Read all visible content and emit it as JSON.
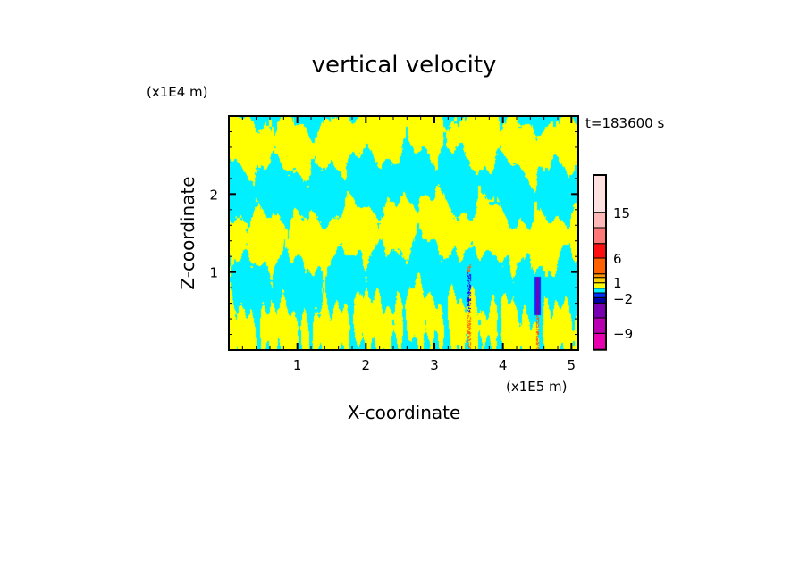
{
  "chart_data": {
    "type": "heatmap",
    "title": "vertical velocity",
    "xlabel": "X-coordinate",
    "ylabel": "Z-coordinate",
    "x_unit": "(x1E5 m)",
    "z_unit": "(x1E4 m)",
    "time_label": "t=183600 s",
    "xlim": [
      0,
      5.1
    ],
    "ylim": [
      0,
      3.0
    ],
    "x_ticks": [
      "1",
      "2",
      "3",
      "4",
      "5"
    ],
    "x_tick_values": [
      1,
      2,
      3,
      4,
      5
    ],
    "y_ticks": [
      "1",
      "2"
    ],
    "y_tick_values": [
      1,
      2
    ],
    "colorbar": {
      "colors": [
        "#e800b0",
        "#b800b0",
        "#7800b0",
        "#0000a8",
        "#0030ff",
        "#00f0ff",
        "#ffff00",
        "#ffd000",
        "#ff9800",
        "#ff6000",
        "#ff1010",
        "#ff7878",
        "#ffb8b8",
        "#ffe0e0"
      ],
      "labels": [
        "-9",
        "-2",
        "1",
        "6",
        "15"
      ],
      "label_levels": [
        1.5,
        4.2,
        6.5,
        9.5,
        12.5
      ]
    },
    "dominant_colors": {
      "positive": "#ffff00",
      "negative": "#00f0ff"
    }
  }
}
